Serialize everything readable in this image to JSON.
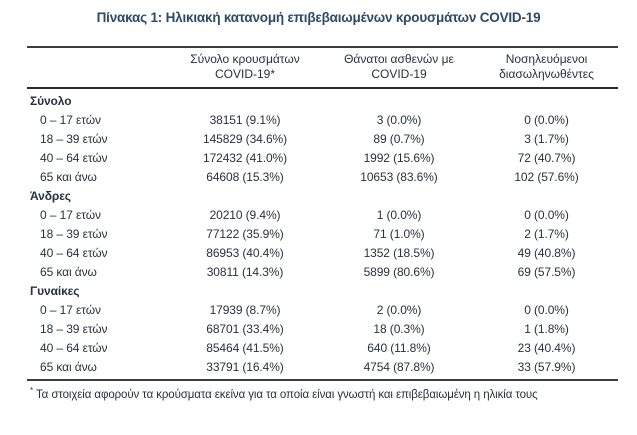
{
  "title": "Πίνακας 1: Ηλικιακή κατανομή επιβεβαιωμένων κρουσμάτων COVID-19",
  "colors": {
    "text": "#26323f",
    "title": "#2d4a66",
    "rule": "#3d3d3d"
  },
  "table": {
    "columns": [
      {
        "line1": "Σύνολο κρουσμάτων",
        "line2": "COVID-19*"
      },
      {
        "line1": "Θάνατοι ασθενών με",
        "line2": "COVID-19"
      },
      {
        "line1": "Νοσηλευόμενοι",
        "line2": "διασωληνωθέντες"
      }
    ],
    "sections": [
      {
        "label": "Σύνολο",
        "rows": [
          {
            "age": "0 – 17 ετών",
            "cases": "38151 (9.1%)",
            "deaths": "3 (0.0%)",
            "intubated": "0 (0.0%)"
          },
          {
            "age": "18 – 39 ετών",
            "cases": "145829 (34.6%)",
            "deaths": "89 (0.7%)",
            "intubated": "3 (1.7%)"
          },
          {
            "age": "40 – 64 ετών",
            "cases": "172432 (41.0%)",
            "deaths": "1992 (15.6%)",
            "intubated": "72 (40.7%)"
          },
          {
            "age": "65 και άνω",
            "cases": "64608 (15.3%)",
            "deaths": "10653 (83.6%)",
            "intubated": "102 (57.6%)"
          }
        ]
      },
      {
        "label": "Άνδρες",
        "rows": [
          {
            "age": "0 – 17 ετών",
            "cases": "20210 (9.4%)",
            "deaths": "1 (0.0%)",
            "intubated": "0 (0.0%)"
          },
          {
            "age": "18 – 39 ετών",
            "cases": "77122 (35.9%)",
            "deaths": "71 (1.0%)",
            "intubated": "2 (1.7%)"
          },
          {
            "age": "40 – 64 ετών",
            "cases": "86953 (40.4%)",
            "deaths": "1352 (18.5%)",
            "intubated": "49 (40.8%)"
          },
          {
            "age": "65 και άνω",
            "cases": "30811 (14.3%)",
            "deaths": "5899 (80.6%)",
            "intubated": "69 (57.5%)"
          }
        ]
      },
      {
        "label": "Γυναίκες",
        "rows": [
          {
            "age": "0 – 17 ετών",
            "cases": "17939 (8.7%)",
            "deaths": "2 (0.0%)",
            "intubated": "0 (0.0%)"
          },
          {
            "age": "18 – 39 ετών",
            "cases": "68701 (33.4%)",
            "deaths": "18 (0.3%)",
            "intubated": "1 (1.8%)"
          },
          {
            "age": "40 – 64 ετών",
            "cases": "85464 (41.5%)",
            "deaths": "640 (11.8%)",
            "intubated": "23 (40.4%)"
          },
          {
            "age": "65 και άνω",
            "cases": "33791 (16.4%)",
            "deaths": "4754 (87.8%)",
            "intubated": "33 (57.9%)"
          }
        ]
      }
    ]
  },
  "footnote": {
    "marker": "*",
    "text": "Τα στοιχεία αφορούν τα κρούσματα εκείνα για τα οποία είναι γνωστή και επιβεβαιωμένη η ηλικία τους"
  }
}
